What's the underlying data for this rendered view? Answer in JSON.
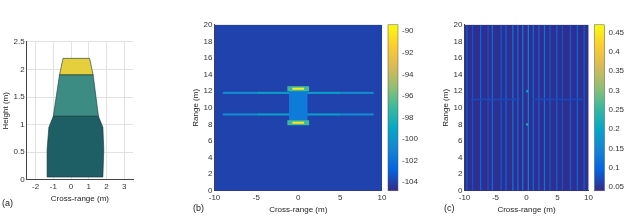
{
  "chart_data": [
    {
      "type": "polygon",
      "panel_label": "(a)",
      "xlabel": "Cross-range (m)",
      "ylabel": "Height (m)",
      "xlim": [
        -2.5,
        3.5
      ],
      "xticks": [
        -2,
        -1,
        0,
        1,
        2,
        3
      ],
      "ylim": [
        0,
        2.5
      ],
      "yticks": [
        0,
        0.5,
        1,
        1.5,
        2,
        2.5
      ],
      "grid": true,
      "series": [
        {
          "color": "#1e5f66",
          "points": [
            [
              -1.3,
              0.05
            ],
            [
              -1.35,
              0.55
            ],
            [
              -1.25,
              0.95
            ],
            [
              -1.0,
              1.15
            ],
            [
              1.55,
              1.15
            ],
            [
              1.8,
              0.95
            ],
            [
              1.85,
              0.55
            ],
            [
              1.8,
              0.05
            ],
            [
              -1.3,
              0.05
            ]
          ]
        },
        {
          "color": "#3d8c84",
          "points": [
            [
              -1.0,
              1.15
            ],
            [
              -0.65,
              1.9
            ],
            [
              1.25,
              1.9
            ],
            [
              1.55,
              1.15
            ],
            [
              -1.0,
              1.15
            ]
          ]
        },
        {
          "color": "#1c3b4a",
          "points": [
            [
              -0.8,
              1.2
            ],
            [
              -0.5,
              1.8
            ],
            [
              1.1,
              1.8
            ],
            [
              1.35,
              1.2
            ],
            [
              -0.8,
              1.2
            ]
          ]
        },
        {
          "color": "#e6cf3c",
          "points": [
            [
              -0.65,
              1.9
            ],
            [
              -0.45,
              2.2
            ],
            [
              1.05,
              2.2
            ],
            [
              1.25,
              1.9
            ],
            [
              -0.65,
              1.9
            ]
          ]
        }
      ]
    },
    {
      "type": "heatmap",
      "panel_label": "(b)",
      "xlabel": "Cross-range (m)",
      "ylabel": "Range (m)",
      "xlim": [
        -10,
        10
      ],
      "xticks": [
        -10,
        -5,
        0,
        5,
        10
      ],
      "ylim": [
        0,
        20
      ],
      "yticks": [
        0,
        2,
        4,
        6,
        8,
        10,
        12,
        14,
        16,
        18,
        20
      ],
      "grid": false,
      "cells": [
        [
          0,
          10,
          20,
          20,
          -104
        ],
        [
          -7,
          11.8,
          4,
          0.25,
          -100.5
        ],
        [
          -3,
          11.8,
          4,
          0.25,
          -99.5
        ],
        [
          3,
          11.8,
          4,
          0.25,
          -99.5
        ],
        [
          7,
          11.8,
          4,
          0.25,
          -100.5
        ],
        [
          -7,
          9.2,
          4,
          0.25,
          -100.5
        ],
        [
          -3,
          9.2,
          4,
          0.25,
          -99.5
        ],
        [
          3,
          9.2,
          4,
          0.25,
          -99.5
        ],
        [
          7,
          9.2,
          4,
          0.25,
          -100.5
        ],
        [
          0,
          10.3,
          2.2,
          4.2,
          -101.5
        ],
        [
          0,
          12.3,
          2.6,
          0.6,
          -97
        ],
        [
          0,
          8.2,
          2.6,
          0.6,
          -97
        ],
        [
          0,
          12.3,
          1.4,
          0.25,
          -90
        ],
        [
          0,
          8.2,
          1.4,
          0.25,
          -90.5
        ]
      ],
      "colorbar": {
        "range": [
          -104.8,
          -89.4
        ],
        "ticks": [
          -90,
          -92,
          -94,
          -96,
          -98,
          -100,
          -102,
          -104
        ]
      }
    },
    {
      "type": "heatmap",
      "panel_label": "(c)",
      "xlabel": "Cross-range (m)",
      "ylabel": "Range (m)",
      "xlim": [
        -10,
        10
      ],
      "xticks": [
        -10,
        -5,
        0,
        5,
        10
      ],
      "ylim": [
        0,
        20
      ],
      "yticks": [
        0,
        2,
        4,
        6,
        8,
        10,
        12,
        14,
        16,
        18,
        20
      ],
      "grid": false,
      "cells": [
        [
          0,
          10,
          20,
          20,
          0.045
        ],
        [
          -9.6,
          10,
          0.2,
          20,
          0.09
        ],
        [
          -8.7,
          10,
          0.2,
          20,
          0.08
        ],
        [
          -7.4,
          10,
          0.2,
          20,
          0.1
        ],
        [
          -6.2,
          10,
          0.2,
          20,
          0.08
        ],
        [
          -5.5,
          10,
          0.2,
          20,
          0.11
        ],
        [
          -4.1,
          10,
          0.2,
          20,
          0.09
        ],
        [
          -3.3,
          10,
          0.2,
          20,
          0.1
        ],
        [
          -2.2,
          10,
          0.2,
          20,
          0.12
        ],
        [
          -1.4,
          10,
          0.2,
          20,
          0.11
        ],
        [
          -0.6,
          10,
          0.2,
          20,
          0.13
        ],
        [
          0.3,
          10,
          0.2,
          20,
          0.14
        ],
        [
          1.1,
          10,
          0.2,
          20,
          0.11
        ],
        [
          2.0,
          10,
          0.2,
          20,
          0.1
        ],
        [
          2.9,
          10,
          0.2,
          20,
          0.12
        ],
        [
          3.8,
          10,
          0.2,
          20,
          0.09
        ],
        [
          4.9,
          10,
          0.2,
          20,
          0.1
        ],
        [
          5.8,
          10,
          0.2,
          20,
          0.08
        ],
        [
          7.1,
          10,
          0.2,
          20,
          0.09
        ],
        [
          8.2,
          10,
          0.2,
          20,
          0.1
        ],
        [
          9.3,
          10,
          0.2,
          20,
          0.09
        ],
        [
          -5,
          11,
          8,
          0.2,
          0.07
        ],
        [
          5,
          11,
          8,
          0.2,
          0.07
        ],
        [
          0.1,
          8,
          0.3,
          0.3,
          0.22
        ],
        [
          0.1,
          12,
          0.3,
          0.3,
          0.2
        ]
      ],
      "colorbar": {
        "range": [
          0.04,
          0.47
        ],
        "ticks": [
          0.05,
          0.1,
          0.15,
          0.2,
          0.25,
          0.3,
          0.35,
          0.4,
          0.45
        ]
      }
    }
  ]
}
